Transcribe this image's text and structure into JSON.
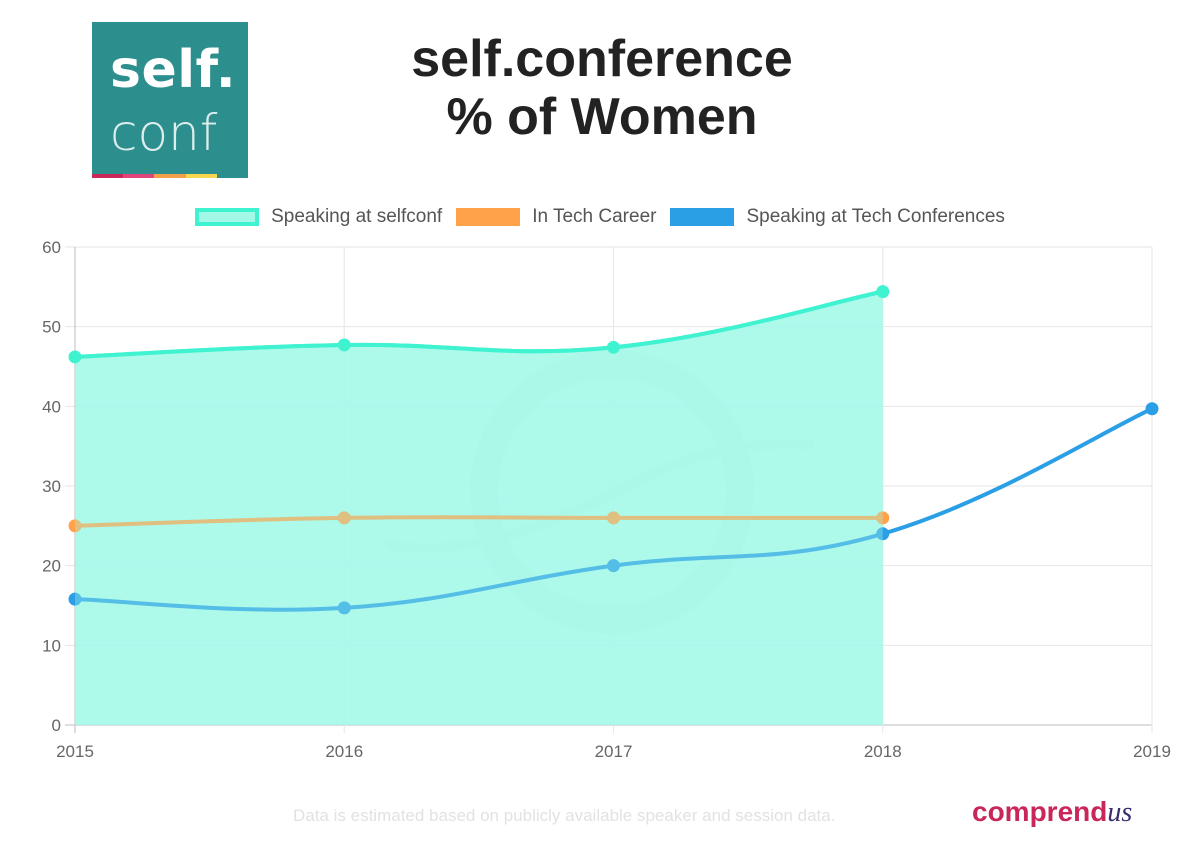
{
  "logo": {
    "top_text": "self.",
    "bottom_text": "conf",
    "background": "#2c8f8e",
    "strip_colors": [
      "#c9265a",
      "#e0457b",
      "#f3a04a",
      "#f8d64e",
      "#2c8f8e"
    ]
  },
  "title_lines": [
    "self.conference",
    "% of Women"
  ],
  "footer": {
    "note": "Data is estimated based on publicly available speaker and session data.",
    "brand_main": "comprend",
    "brand_script": "us"
  },
  "chart_data": {
    "type": "line",
    "x": [
      "2015",
      "2016",
      "2017",
      "2018",
      "2019"
    ],
    "ylim": [
      0,
      60
    ],
    "yticks": [
      0,
      10,
      20,
      30,
      40,
      50,
      60
    ],
    "grid": true,
    "legend_position": "top",
    "series": [
      {
        "name": "Speaking at selfconf",
        "values": [
          46.2,
          47.7,
          47.4,
          54.4,
          null
        ],
        "color": "#3ff2d0",
        "fill": "#a4f8e7",
        "filled": true
      },
      {
        "name": "In Tech Career",
        "values": [
          25,
          26,
          26,
          26,
          null
        ],
        "color": "#ffa24a",
        "filled": false
      },
      {
        "name": "Speaking at Tech Conferences",
        "values": [
          15.8,
          14.7,
          20,
          24,
          39.7
        ],
        "color": "#2b9fe6",
        "filled": false
      }
    ]
  }
}
